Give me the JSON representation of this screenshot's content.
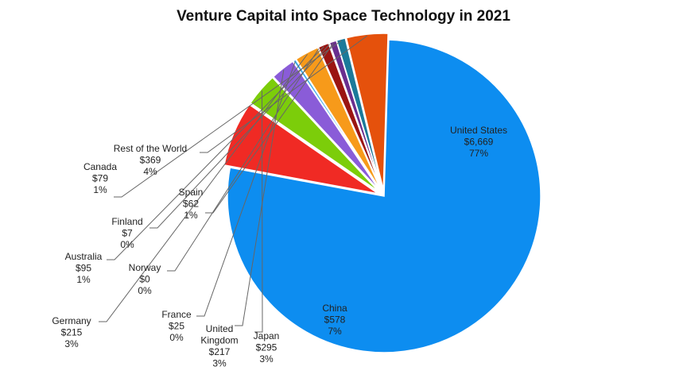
{
  "chart_data": {
    "type": "pie",
    "title": "Venture Capital into Space Technology in 2021",
    "slices": [
      {
        "name": "United States",
        "value_label": "$6,669",
        "pct_label": "77%",
        "value": 6669,
        "color": "#0d8df0"
      },
      {
        "name": "China",
        "value_label": "$578",
        "pct_label": "7%",
        "value": 578,
        "color": "#f02a24"
      },
      {
        "name": "Japan",
        "value_label": "$295",
        "pct_label": "3%",
        "value": 295,
        "color": "#7ccd0a"
      },
      {
        "name": "United Kingdom",
        "value_label": "$217",
        "pct_label": "3%",
        "value": 217,
        "color": "#8a5cd8"
      },
      {
        "name": "France",
        "value_label": "$25",
        "pct_label": "0%",
        "value": 25,
        "color": "#3aa9e8"
      },
      {
        "name": "Germany",
        "value_label": "$215",
        "pct_label": "3%",
        "value": 215,
        "color": "#f79a1a"
      },
      {
        "name": "Norway",
        "value_label": "$0",
        "pct_label": "0%",
        "value": 0,
        "color": "#b0b0b0"
      },
      {
        "name": "Australia",
        "value_label": "$95",
        "pct_label": "1%",
        "value": 95,
        "color": "#9b1512"
      },
      {
        "name": "Finland",
        "value_label": "$7",
        "pct_label": "0%",
        "value": 7,
        "color": "#2d2d6e"
      },
      {
        "name": "Spain",
        "value_label": "$62",
        "pct_label": "1%",
        "value": 62,
        "color": "#6a2e8e"
      },
      {
        "name": "Canada",
        "value_label": "$79",
        "pct_label": "1%",
        "value": 79,
        "color": "#1b7a9a"
      },
      {
        "name": "Rest of the World",
        "value_label": "$369",
        "pct_label": "4%",
        "value": 369,
        "color": "#e5510c"
      }
    ]
  }
}
